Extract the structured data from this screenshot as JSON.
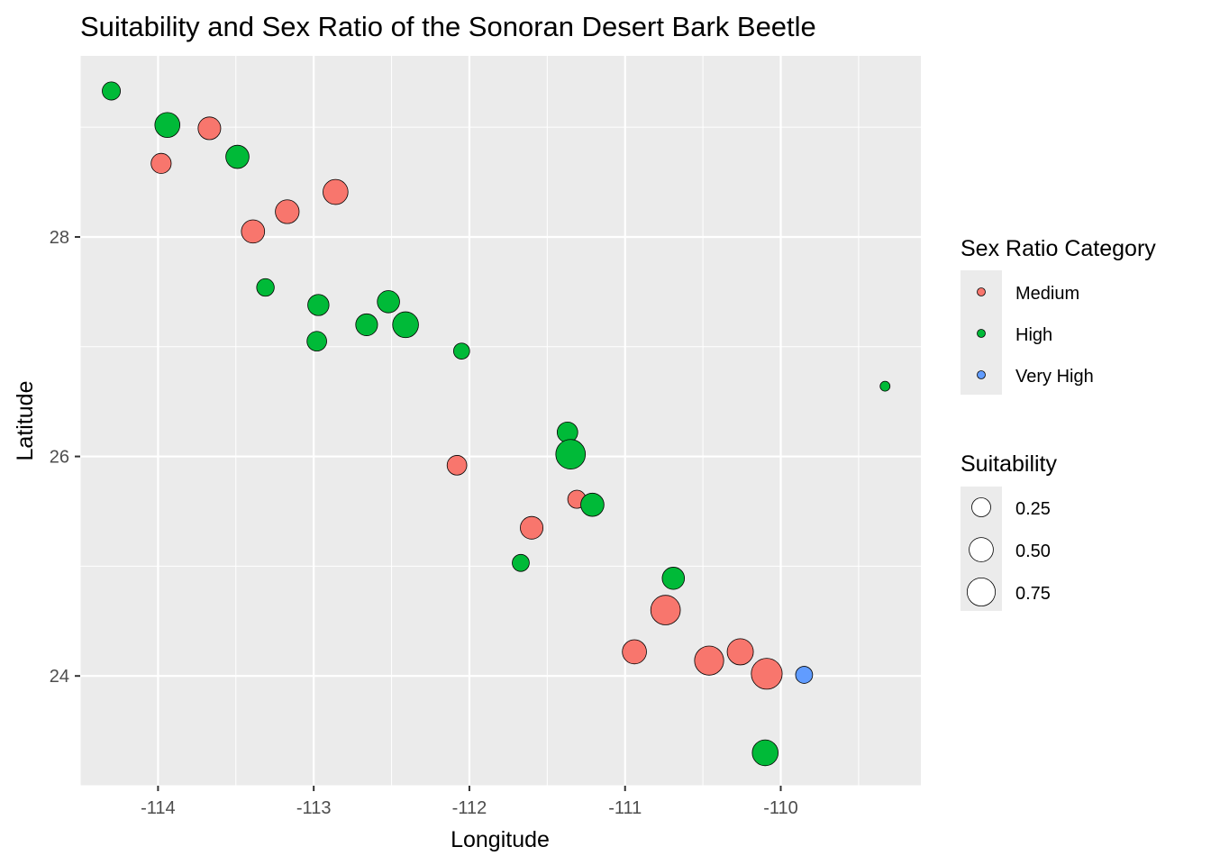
{
  "chart_data": {
    "type": "scatter",
    "title": "Suitability and Sex Ratio of the Sonoran Desert Bark Beetle",
    "xlabel": "Longitude",
    "ylabel": "Latitude",
    "xlim": [
      -114.5,
      -109.1
    ],
    "ylim": [
      23.0,
      29.65
    ],
    "x_ticks": [
      -114,
      -113,
      -112,
      -111,
      -110
    ],
    "x_tick_labels": [
      "-114",
      "-113",
      "-112",
      "-111",
      "-110"
    ],
    "y_ticks": [
      24,
      26,
      28
    ],
    "y_tick_labels": [
      "24",
      "26",
      "28"
    ],
    "grid": true,
    "legend_position": "right",
    "color_legend": {
      "title": "Sex Ratio Category",
      "entries": [
        {
          "label": "Medium",
          "color": "#F8766D"
        },
        {
          "label": "High",
          "color": "#00BA38"
        },
        {
          "label": "Very High",
          "color": "#619CFF"
        }
      ]
    },
    "size_legend": {
      "title": "Suitability",
      "entries": [
        {
          "label": "0.25",
          "value": 0.25
        },
        {
          "label": "0.50",
          "value": 0.5
        },
        {
          "label": "0.75",
          "value": 0.75
        }
      ]
    },
    "points": [
      {
        "x": -114.3,
        "y": 29.33,
        "category": "High",
        "suitability": 0.22
      },
      {
        "x": -113.94,
        "y": 29.02,
        "category": "High",
        "suitability": 0.55
      },
      {
        "x": -113.67,
        "y": 28.99,
        "category": "Medium",
        "suitability": 0.42
      },
      {
        "x": -113.98,
        "y": 28.67,
        "category": "Medium",
        "suitability": 0.3
      },
      {
        "x": -113.49,
        "y": 28.73,
        "category": "High",
        "suitability": 0.45
      },
      {
        "x": -112.86,
        "y": 28.41,
        "category": "Medium",
        "suitability": 0.55
      },
      {
        "x": -113.17,
        "y": 28.23,
        "category": "Medium",
        "suitability": 0.48
      },
      {
        "x": -113.39,
        "y": 28.05,
        "category": "Medium",
        "suitability": 0.45
      },
      {
        "x": -113.31,
        "y": 27.54,
        "category": "High",
        "suitability": 0.2
      },
      {
        "x": -112.97,
        "y": 27.38,
        "category": "High",
        "suitability": 0.35
      },
      {
        "x": -112.52,
        "y": 27.41,
        "category": "High",
        "suitability": 0.4
      },
      {
        "x": -112.66,
        "y": 27.2,
        "category": "High",
        "suitability": 0.38
      },
      {
        "x": -112.41,
        "y": 27.2,
        "category": "High",
        "suitability": 0.6
      },
      {
        "x": -112.98,
        "y": 27.05,
        "category": "High",
        "suitability": 0.28
      },
      {
        "x": -112.05,
        "y": 26.96,
        "category": "High",
        "suitability": 0.15
      },
      {
        "x": -109.33,
        "y": 26.64,
        "category": "High",
        "suitability": 0.02
      },
      {
        "x": -111.37,
        "y": 26.22,
        "category": "High",
        "suitability": 0.32
      },
      {
        "x": -111.35,
        "y": 26.02,
        "category": "High",
        "suitability": 0.85
      },
      {
        "x": -112.08,
        "y": 25.92,
        "category": "Medium",
        "suitability": 0.28
      },
      {
        "x": -111.31,
        "y": 25.61,
        "category": "Medium",
        "suitability": 0.22
      },
      {
        "x": -111.21,
        "y": 25.56,
        "category": "High",
        "suitability": 0.45
      },
      {
        "x": -111.6,
        "y": 25.35,
        "category": "Medium",
        "suitability": 0.42
      },
      {
        "x": -111.67,
        "y": 25.03,
        "category": "High",
        "suitability": 0.18
      },
      {
        "x": -110.69,
        "y": 24.89,
        "category": "High",
        "suitability": 0.4
      },
      {
        "x": -110.74,
        "y": 24.6,
        "category": "Medium",
        "suitability": 0.85
      },
      {
        "x": -110.94,
        "y": 24.22,
        "category": "Medium",
        "suitability": 0.5
      },
      {
        "x": -110.26,
        "y": 24.22,
        "category": "Medium",
        "suitability": 0.62
      },
      {
        "x": -110.46,
        "y": 24.14,
        "category": "Medium",
        "suitability": 0.82
      },
      {
        "x": -110.09,
        "y": 24.02,
        "category": "Medium",
        "suitability": 0.95
      },
      {
        "x": -109.85,
        "y": 24.01,
        "category": "Very High",
        "suitability": 0.18
      },
      {
        "x": -110.1,
        "y": 23.3,
        "category": "High",
        "suitability": 0.6
      }
    ]
  }
}
